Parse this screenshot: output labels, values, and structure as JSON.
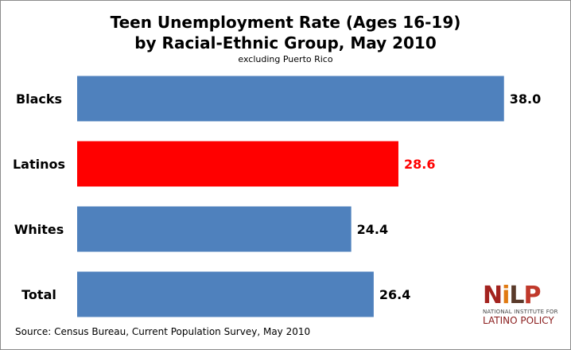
{
  "title_line1": "Teen Unemployment Rate (Ages 16-19)",
  "title_line2": "by Racial-Ethnic Group, May 2010",
  "subtitle": "excluding Puerto Rico",
  "source": "Source: Census Bureau, Current Population Survey, May 2010",
  "logo": {
    "mark": [
      "N",
      "i",
      "L",
      "P"
    ],
    "line1": "NATIONAL INSTITUTE FOR",
    "line2": "LATINO POLICY"
  },
  "colors": {
    "default_bar": "#4f81bd",
    "highlight_bar": "#ff0000",
    "highlight_label": "#ff0000",
    "default_label": "#000000"
  },
  "chart_data": {
    "type": "bar",
    "orientation": "horizontal",
    "categories": [
      "Blacks",
      "Latinos",
      "Whites",
      "Total"
    ],
    "values": [
      38.0,
      28.6,
      24.4,
      26.4
    ],
    "value_labels": [
      "38.0",
      "28.6",
      "24.4",
      "26.4"
    ],
    "highlight": "Latinos",
    "xlim": [
      0,
      40
    ],
    "grid": false,
    "legend": "none"
  }
}
